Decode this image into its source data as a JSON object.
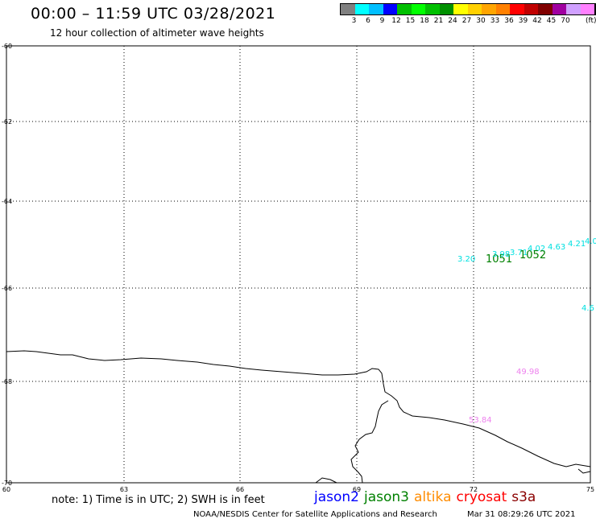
{
  "header": {
    "title": "00:00 – 11:59 UTC 03/28/2021",
    "subtitle": "12 hour collection of altimeter wave heights"
  },
  "legend": {
    "unit": "(ft)",
    "colors": [
      "#808080",
      "#00ffff",
      "#00bfff",
      "#0000ff",
      "#00bf00",
      "#00ff00",
      "#00c000",
      "#009000",
      "#ffff00",
      "#ffd000",
      "#ffa500",
      "#ff8000",
      "#ff0000",
      "#c00000",
      "#800000",
      "#a000a0",
      "#d0a0ff",
      "#ff80ff",
      "#000000"
    ],
    "labels": [
      "3",
      "6",
      "9",
      "12",
      "15",
      "18",
      "21",
      "24",
      "27",
      "30",
      "33",
      "36",
      "39",
      "42",
      "45",
      "70"
    ]
  },
  "map": {
    "lat_labels": [
      "-60",
      "-62",
      "-64",
      "-66",
      "-68",
      "-70"
    ],
    "lon_labels": [
      "60",
      "63",
      "66",
      "69",
      "72",
      "75"
    ],
    "observations": [
      {
        "text": "3.20",
        "color": "#00e0e0"
      },
      {
        "text": "1051",
        "color": "#008000"
      },
      {
        "text": "3.98",
        "color": "#00e0e0"
      },
      {
        "text": "3.71",
        "color": "#00e0e0"
      },
      {
        "text": "4.02",
        "color": "#00e0e0"
      },
      {
        "text": "1052",
        "color": "#008000"
      },
      {
        "text": "4.63",
        "color": "#00e0e0"
      },
      {
        "text": "4.21",
        "color": "#00e0e0"
      },
      {
        "text": "4.0",
        "color": "#00e0e0"
      },
      {
        "text": "4.6",
        "color": "#00e0e0"
      },
      {
        "text": "49.98",
        "color": "#ee82ee"
      },
      {
        "text": "53.84",
        "color": "#ee82ee"
      }
    ]
  },
  "footer": {
    "note": "note: 1) Time is in UTC; 2) SWH is in feet",
    "satellites": [
      {
        "name": "jason2",
        "color": "#0000ff"
      },
      {
        "name": "jason3",
        "color": "#008000"
      },
      {
        "name": "altika",
        "color": "#ff8c00"
      },
      {
        "name": "cryosat",
        "color": "#ff0000"
      },
      {
        "name": "s3a",
        "color": "#8b0000"
      }
    ],
    "credit": "NOAA/NESDIS Center for Satellite Applications and Research",
    "timestamp": "Mar 31 08:29:26 UTC 2021"
  }
}
